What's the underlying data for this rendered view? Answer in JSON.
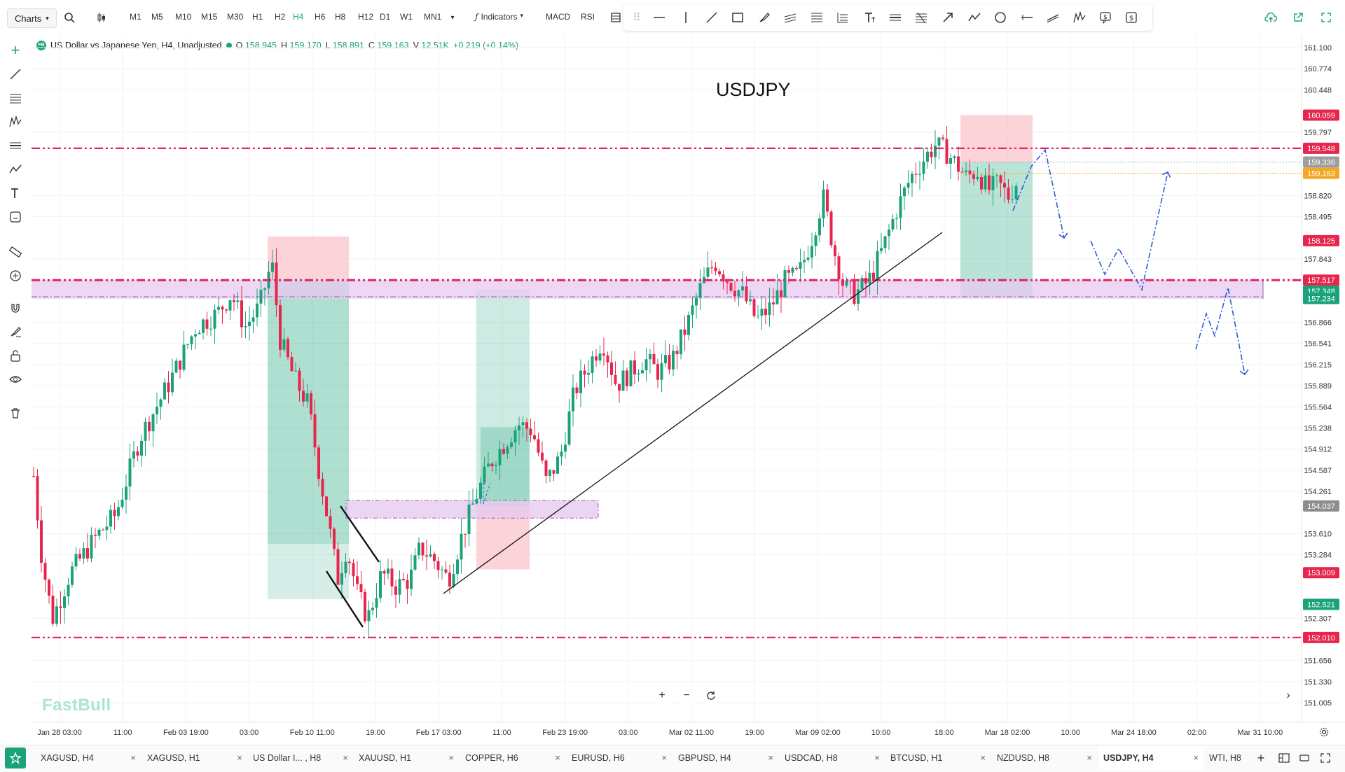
{
  "topbar": {
    "charts_label": "Charts",
    "timeframes": [
      "M1",
      "M5",
      "M10",
      "M15",
      "M30",
      "H1",
      "H2",
      "H4",
      "H6",
      "H8",
      "H12",
      "D1",
      "W1",
      "MN1"
    ],
    "active_timeframe": "H4",
    "indicators_label": "Indicators",
    "macd_label": "MACD",
    "rsi_label": "RSI"
  },
  "symbol_info": {
    "name": "US Dollar vs Japanese Yen, H4, Unadjusted",
    "open_label": "O",
    "open": "158.945",
    "high_label": "H",
    "high": "159.170",
    "low_label": "L",
    "low": "158.891",
    "close_label": "C",
    "close": "159.163",
    "volume_label": "V",
    "volume": "12.51K",
    "change": "+0.219 (+0.14%)"
  },
  "chart_title": "USDJPY",
  "watermark": "FastBull",
  "price_axis": {
    "ticks": [
      "161.100",
      "160.774",
      "160.448",
      "159.797",
      "158.820",
      "158.495",
      "157.843",
      "156.866",
      "156.541",
      "156.215",
      "155.889",
      "155.564",
      "155.238",
      "154.912",
      "154.587",
      "154.261",
      "153.610",
      "153.284",
      "152.307",
      "151.656",
      "151.330",
      "151.005"
    ],
    "badges": [
      {
        "value": "160.059",
        "color": "#e8264d"
      },
      {
        "value": "159.548",
        "color": "#e8264d"
      },
      {
        "value": "159.336",
        "color": "#9e9e9e"
      },
      {
        "value": "159.163",
        "color": "#f5a623"
      },
      {
        "value": "158.125",
        "color": "#e8264d"
      },
      {
        "value": "157.517",
        "color": "#e8264d"
      },
      {
        "value": "157.348",
        "color": "#1aa37a"
      },
      {
        "value": "157.234",
        "color": "#1aa37a"
      },
      {
        "value": "154.037",
        "color": "#8d8d8d"
      },
      {
        "value": "153.009",
        "color": "#e8264d"
      },
      {
        "value": "152.521",
        "color": "#1aa37a"
      },
      {
        "value": "152.010",
        "color": "#e8264d"
      }
    ]
  },
  "time_axis": {
    "labels": [
      "Jan 28 03:00",
      "11:00",
      "Feb 03 19:00",
      "03:00",
      "Feb 10 11:00",
      "19:00",
      "Feb 17 03:00",
      "11:00",
      "Feb 23 19:00",
      "03:00",
      "Mar 02 11:00",
      "19:00",
      "Mar 09 02:00",
      "10:00",
      "18:00",
      "Mar 18 02:00",
      "10:00",
      "Mar 24 18:00",
      "02:00",
      "Mar 31 10:00"
    ]
  },
  "chart_data": {
    "type": "candlestick",
    "ylim": [
      150.9,
      161.3
    ],
    "resistance_levels": [
      159.548,
      157.517,
      152.01
    ],
    "support_zone": [
      157.234,
      157.517
    ],
    "colors": {
      "up": "#1aa37a",
      "down": "#e8264d",
      "level": "#e0245e",
      "zone": "#e7c9f0"
    }
  },
  "tabs": [
    {
      "label": "XAGUSD, H4"
    },
    {
      "label": "XAGUSD, H1"
    },
    {
      "label": "US Dollar I... , H8"
    },
    {
      "label": "XAUUSD, H1"
    },
    {
      "label": "COPPER, H6"
    },
    {
      "label": "EURUSD, H6"
    },
    {
      "label": "GBPUSD, H4"
    },
    {
      "label": "USDCAD, H8"
    },
    {
      "label": "BTCUSD, H1"
    },
    {
      "label": "NZDUSD, H8"
    },
    {
      "label": "USDJPY, H4"
    },
    {
      "label": "WTI, H8"
    }
  ]
}
